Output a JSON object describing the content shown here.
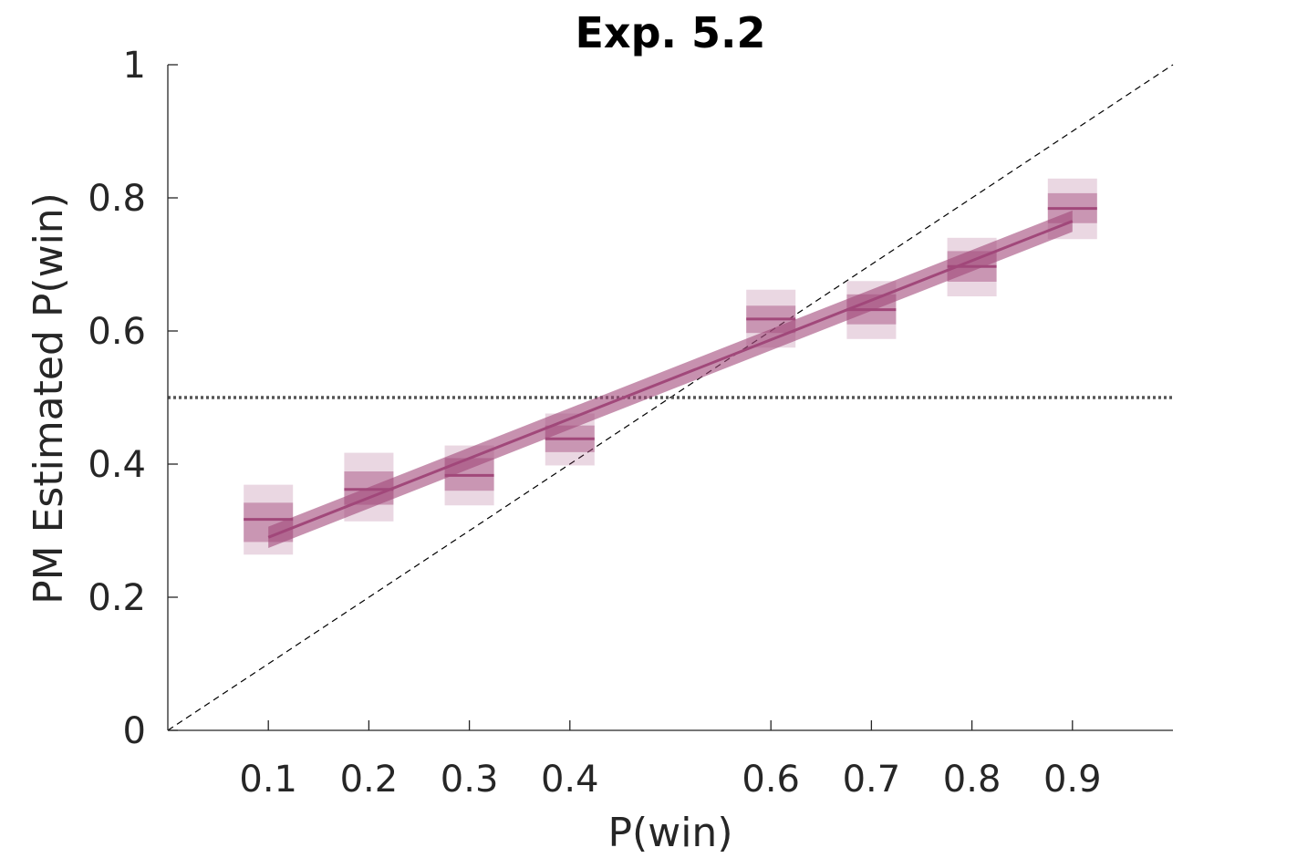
{
  "chart_data": {
    "type": "line",
    "title": "Exp. 5.2",
    "xlabel": "P(win)",
    "ylabel": "PM Estimated P(win)",
    "xlim": [
      0,
      1
    ],
    "ylim": [
      0,
      1
    ],
    "x_ticks": [
      0.1,
      0.2,
      0.3,
      0.4,
      0.6,
      0.7,
      0.8,
      0.9
    ],
    "x_tick_labels": [
      "0.1",
      "0.2",
      "0.3",
      "0.4",
      "0.6",
      "0.7",
      "0.8",
      "0.9"
    ],
    "y_ticks": [
      0,
      0.2,
      0.4,
      0.6,
      0.8,
      1
    ],
    "y_tick_labels": [
      "0",
      "0.2",
      "0.4",
      "0.6",
      "0.8",
      "1"
    ],
    "grid": false,
    "color": "#a1487a",
    "points": [
      {
        "x": 0.1,
        "y": 0.317,
        "inner": [
          0.283,
          0.342
        ],
        "outer": [
          0.264,
          0.369
        ]
      },
      {
        "x": 0.2,
        "y": 0.362,
        "inner": [
          0.339,
          0.389
        ],
        "outer": [
          0.314,
          0.417
        ]
      },
      {
        "x": 0.3,
        "y": 0.383,
        "inner": [
          0.36,
          0.409
        ],
        "outer": [
          0.338,
          0.428
        ]
      },
      {
        "x": 0.4,
        "y": 0.438,
        "inner": [
          0.418,
          0.458
        ],
        "outer": [
          0.398,
          0.476
        ]
      },
      {
        "x": 0.6,
        "y": 0.618,
        "inner": [
          0.597,
          0.638
        ],
        "outer": [
          0.575,
          0.662
        ]
      },
      {
        "x": 0.7,
        "y": 0.632,
        "inner": [
          0.61,
          0.655
        ],
        "outer": [
          0.588,
          0.675
        ]
      },
      {
        "x": 0.8,
        "y": 0.697,
        "inner": [
          0.674,
          0.72
        ],
        "outer": [
          0.652,
          0.74
        ]
      },
      {
        "x": 0.9,
        "y": 0.784,
        "inner": [
          0.762,
          0.807
        ],
        "outer": [
          0.738,
          0.829
        ]
      }
    ],
    "fit": {
      "x": [
        0.1,
        0.9
      ],
      "y": [
        0.29,
        0.765
      ],
      "band": 0.016
    },
    "reference_lines": [
      {
        "kind": "identity",
        "style": "dashed"
      },
      {
        "kind": "horizontal",
        "y": 0.5,
        "style": "dotted"
      }
    ]
  }
}
